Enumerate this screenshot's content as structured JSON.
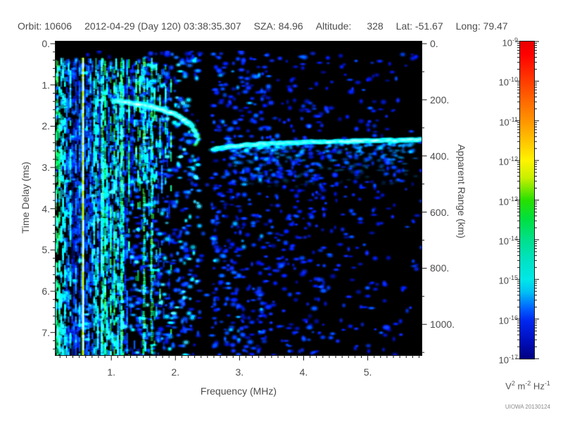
{
  "header": {
    "orbit": "Orbit: 10606",
    "datetime": "2012-04-29 (Day 120) 03:38:35.307",
    "sza": "SZA: 84.96",
    "altitude_label": "Altitude:",
    "altitude_value": "328",
    "lat": "Lat: -51.67",
    "long": "Long: 79.47"
  },
  "footer": {
    "watermark": "UIOWA 20130124"
  },
  "chart_data": {
    "type": "heatmap",
    "description": "Radar sounder ionogram: received spectral density vs frequency and time delay. Black background with blue-green speckle, vertical plasma-line striping at low frequency, ionospheric echo cusp trace, and a horizontal ground echo line.",
    "x_axis": {
      "label": "Frequency (MHz)",
      "min": 0.12,
      "max": 5.85,
      "major_tick_values": [
        1,
        2,
        3,
        4,
        5
      ],
      "major_tick_labels": [
        "1.",
        "2.",
        "3.",
        "4.",
        "5."
      ],
      "minor_step": 0.1
    },
    "y_axis_left": {
      "label": "Time Delay (ms)",
      "min": -0.07,
      "max": 7.55,
      "major_tick_values": [
        0,
        1,
        2,
        3,
        4,
        5,
        6,
        7
      ],
      "major_tick_labels": [
        "0.",
        "1.",
        "2.",
        "3.",
        "4.",
        "5.",
        "6.",
        "7."
      ],
      "minor_step": 0.2
    },
    "y_axis_right": {
      "label": "Apparent Range (km)",
      "major_tick_values": [
        0,
        200,
        400,
        600,
        800,
        1000
      ],
      "major_tick_labels": [
        "0.",
        "200.",
        "400.",
        "600.",
        "800.",
        "1000."
      ],
      "minor_step": 100,
      "km_per_ms": 147
    },
    "colorbar": {
      "scale": "log",
      "base": "10",
      "exponents": [
        "-9",
        "-10",
        "-11",
        "-12",
        "-13",
        "-14",
        "-15",
        "-16",
        "-17"
      ],
      "units_parts": [
        {
          "base": "V",
          "sup": "2"
        },
        {
          "base": "m",
          "sup": "-2"
        },
        {
          "base": "Hz",
          "sup": "-1"
        }
      ],
      "gradient": [
        {
          "pos": 0,
          "color": "#e80000"
        },
        {
          "pos": 4,
          "color": "#ff0000"
        },
        {
          "pos": 12.5,
          "color": "#ff3c00"
        },
        {
          "pos": 25,
          "color": "#ff9400"
        },
        {
          "pos": 33,
          "color": "#ffd000"
        },
        {
          "pos": 37.5,
          "color": "#fff400"
        },
        {
          "pos": 43,
          "color": "#c8f000"
        },
        {
          "pos": 50,
          "color": "#28e000"
        },
        {
          "pos": 56,
          "color": "#00e040"
        },
        {
          "pos": 62.5,
          "color": "#00e08c"
        },
        {
          "pos": 69,
          "color": "#00e2c4"
        },
        {
          "pos": 75,
          "color": "#00e8e8"
        },
        {
          "pos": 79,
          "color": "#00c0f4"
        },
        {
          "pos": 84,
          "color": "#0064ff"
        },
        {
          "pos": 88,
          "color": "#0028f0"
        },
        {
          "pos": 94,
          "color": "#0010c0"
        },
        {
          "pos": 100,
          "color": "#000080"
        }
      ]
    },
    "features": {
      "transmit_pulse_ms": 0.28,
      "ionosphere_echo_trace": [
        [
          1.05,
          1.38
        ],
        [
          1.3,
          1.44
        ],
        [
          1.55,
          1.5
        ],
        [
          1.8,
          1.6
        ],
        [
          2.0,
          1.72
        ],
        [
          2.15,
          1.86
        ],
        [
          2.27,
          2.02
        ],
        [
          2.33,
          2.28
        ]
      ],
      "ground_echo_trace": [
        [
          2.6,
          2.56
        ],
        [
          2.8,
          2.5
        ],
        [
          3.0,
          2.46
        ],
        [
          3.5,
          2.42
        ],
        [
          4.0,
          2.39
        ],
        [
          4.5,
          2.37
        ],
        [
          5.0,
          2.35
        ],
        [
          5.5,
          2.34
        ],
        [
          5.85,
          2.33
        ]
      ],
      "plasma_harmonic_lines_mhz": [
        0.55,
        0.85,
        1.15,
        1.5,
        1.62
      ],
      "striped_band_max_mhz": 1.92,
      "quiet_gap_mhz": [
        2.38,
        2.57
      ]
    }
  }
}
